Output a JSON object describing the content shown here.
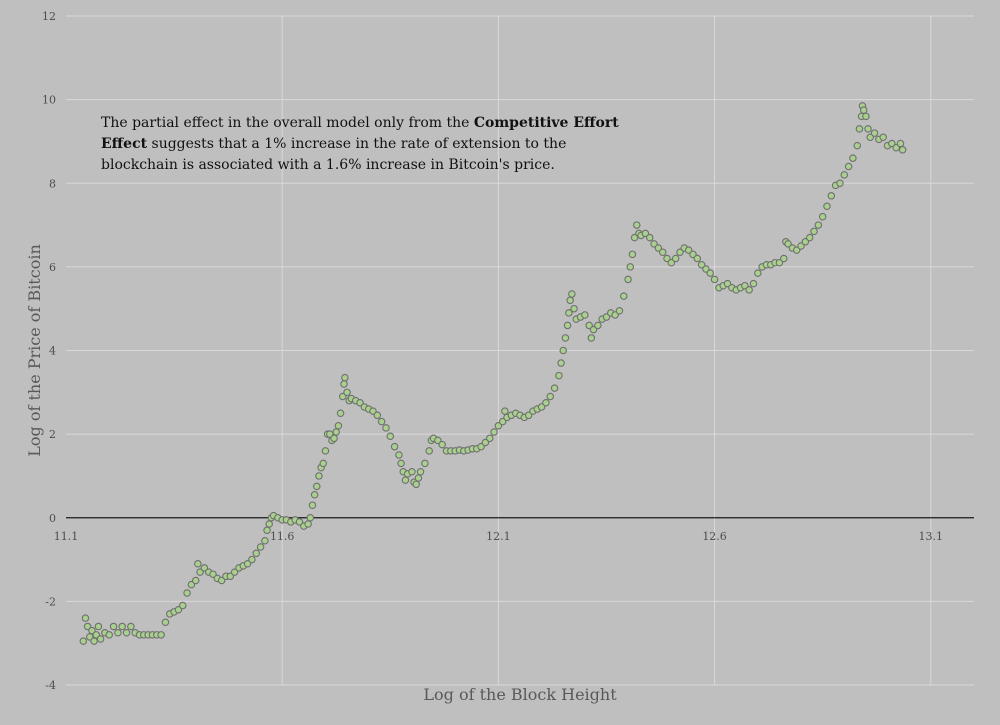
{
  "chart_data": {
    "type": "scatter",
    "title": "",
    "xlabel": "Log of the Block Height",
    "ylabel": "Log of  the  Price of  Bitcoin",
    "xlim": [
      11.1,
      13.2
    ],
    "ylim": [
      -4,
      12
    ],
    "x_ticks": [
      "11.1",
      "11.6",
      "12.1",
      "12.6",
      "13.1"
    ],
    "y_ticks": [
      "-4",
      "-2",
      "0",
      "2",
      "4",
      "6",
      "8",
      "10",
      "12"
    ],
    "grid": true,
    "legend": "none",
    "annotation": {
      "before": "The partial effect in the overall model only from the ",
      "bold": "Competitive Effort Effect",
      "after": " suggests that a 1% increase in the rate of extension to the blockchain is associated with a 1.6% increase in Bitcoin's price."
    },
    "colors": {
      "background": "#bfbfbf",
      "grid": "#d9d9d9",
      "marker_fill": "#a9d08e",
      "marker_stroke": "#6f6f6f",
      "zero_line": "#1a1a1a"
    },
    "series": [
      {
        "points": [
          [
            11.14,
            -2.95
          ],
          [
            11.145,
            -2.4
          ],
          [
            11.15,
            -2.6
          ],
          [
            11.155,
            -2.85
          ],
          [
            11.16,
            -2.7
          ],
          [
            11.165,
            -2.95
          ],
          [
            11.17,
            -2.8
          ],
          [
            11.175,
            -2.6
          ],
          [
            11.18,
            -2.9
          ],
          [
            11.19,
            -2.75
          ],
          [
            11.2,
            -2.8
          ],
          [
            11.21,
            -2.6
          ],
          [
            11.22,
            -2.75
          ],
          [
            11.23,
            -2.6
          ],
          [
            11.24,
            -2.75
          ],
          [
            11.25,
            -2.6
          ],
          [
            11.26,
            -2.75
          ],
          [
            11.27,
            -2.8
          ],
          [
            11.28,
            -2.8
          ],
          [
            11.29,
            -2.8
          ],
          [
            11.3,
            -2.8
          ],
          [
            11.31,
            -2.8
          ],
          [
            11.32,
            -2.8
          ],
          [
            11.33,
            -2.5
          ],
          [
            11.34,
            -2.3
          ],
          [
            11.35,
            -2.25
          ],
          [
            11.36,
            -2.2
          ],
          [
            11.37,
            -2.1
          ],
          [
            11.38,
            -1.8
          ],
          [
            11.39,
            -1.6
          ],
          [
            11.4,
            -1.5
          ],
          [
            11.405,
            -1.1
          ],
          [
            11.41,
            -1.3
          ],
          [
            11.42,
            -1.2
          ],
          [
            11.43,
            -1.3
          ],
          [
            11.44,
            -1.35
          ],
          [
            11.45,
            -1.45
          ],
          [
            11.46,
            -1.5
          ],
          [
            11.47,
            -1.4
          ],
          [
            11.48,
            -1.4
          ],
          [
            11.49,
            -1.3
          ],
          [
            11.5,
            -1.2
          ],
          [
            11.51,
            -1.15
          ],
          [
            11.52,
            -1.1
          ],
          [
            11.53,
            -1.0
          ],
          [
            11.54,
            -0.85
          ],
          [
            11.55,
            -0.7
          ],
          [
            11.56,
            -0.55
          ],
          [
            11.565,
            -0.3
          ],
          [
            11.57,
            -0.15
          ],
          [
            11.575,
            0.0
          ],
          [
            11.58,
            0.05
          ],
          [
            11.59,
            0.0
          ],
          [
            11.6,
            -0.05
          ],
          [
            11.61,
            -0.05
          ],
          [
            11.62,
            -0.1
          ],
          [
            11.63,
            -0.05
          ],
          [
            11.64,
            -0.1
          ],
          [
            11.65,
            -0.2
          ],
          [
            11.66,
            -0.15
          ],
          [
            11.665,
            0.0
          ],
          [
            11.67,
            0.3
          ],
          [
            11.675,
            0.55
          ],
          [
            11.68,
            0.75
          ],
          [
            11.685,
            1.0
          ],
          [
            11.69,
            1.2
          ],
          [
            11.695,
            1.3
          ],
          [
            11.7,
            1.6
          ],
          [
            11.705,
            2.0
          ],
          [
            11.71,
            2.0
          ],
          [
            11.715,
            1.85
          ],
          [
            11.72,
            1.9
          ],
          [
            11.725,
            2.05
          ],
          [
            11.73,
            2.2
          ],
          [
            11.735,
            2.5
          ],
          [
            11.74,
            2.9
          ],
          [
            11.743,
            3.2
          ],
          [
            11.745,
            3.35
          ],
          [
            11.75,
            3.0
          ],
          [
            11.755,
            2.8
          ],
          [
            11.76,
            2.85
          ],
          [
            11.77,
            2.8
          ],
          [
            11.78,
            2.75
          ],
          [
            11.79,
            2.65
          ],
          [
            11.8,
            2.6
          ],
          [
            11.81,
            2.55
          ],
          [
            11.82,
            2.45
          ],
          [
            11.83,
            2.3
          ],
          [
            11.84,
            2.15
          ],
          [
            11.85,
            1.95
          ],
          [
            11.86,
            1.7
          ],
          [
            11.87,
            1.5
          ],
          [
            11.875,
            1.3
          ],
          [
            11.88,
            1.1
          ],
          [
            11.885,
            0.9
          ],
          [
            11.89,
            1.05
          ],
          [
            11.9,
            1.1
          ],
          [
            11.905,
            0.85
          ],
          [
            11.91,
            0.8
          ],
          [
            11.915,
            0.95
          ],
          [
            11.92,
            1.1
          ],
          [
            11.93,
            1.3
          ],
          [
            11.94,
            1.6
          ],
          [
            11.945,
            1.85
          ],
          [
            11.95,
            1.9
          ],
          [
            11.96,
            1.85
          ],
          [
            11.97,
            1.75
          ],
          [
            11.98,
            1.6
          ],
          [
            11.99,
            1.6
          ],
          [
            12.0,
            1.6
          ],
          [
            12.01,
            1.62
          ],
          [
            12.02,
            1.6
          ],
          [
            12.03,
            1.62
          ],
          [
            12.04,
            1.65
          ],
          [
            12.05,
            1.65
          ],
          [
            12.06,
            1.7
          ],
          [
            12.07,
            1.8
          ],
          [
            12.08,
            1.9
          ],
          [
            12.09,
            2.05
          ],
          [
            12.1,
            2.2
          ],
          [
            12.11,
            2.3
          ],
          [
            12.115,
            2.55
          ],
          [
            12.12,
            2.4
          ],
          [
            12.13,
            2.45
          ],
          [
            12.14,
            2.5
          ],
          [
            12.15,
            2.45
          ],
          [
            12.16,
            2.4
          ],
          [
            12.17,
            2.45
          ],
          [
            12.18,
            2.55
          ],
          [
            12.19,
            2.6
          ],
          [
            12.2,
            2.65
          ],
          [
            12.21,
            2.75
          ],
          [
            12.22,
            2.9
          ],
          [
            12.23,
            3.1
          ],
          [
            12.24,
            3.4
          ],
          [
            12.245,
            3.7
          ],
          [
            12.25,
            4.0
          ],
          [
            12.255,
            4.3
          ],
          [
            12.26,
            4.6
          ],
          [
            12.263,
            4.9
          ],
          [
            12.266,
            5.2
          ],
          [
            12.27,
            5.35
          ],
          [
            12.275,
            5.0
          ],
          [
            12.28,
            4.75
          ],
          [
            12.29,
            4.8
          ],
          [
            12.3,
            4.85
          ],
          [
            12.31,
            4.6
          ],
          [
            12.315,
            4.3
          ],
          [
            12.32,
            4.5
          ],
          [
            12.33,
            4.6
          ],
          [
            12.34,
            4.75
          ],
          [
            12.35,
            4.8
          ],
          [
            12.36,
            4.9
          ],
          [
            12.37,
            4.85
          ],
          [
            12.38,
            4.95
          ],
          [
            12.39,
            5.3
          ],
          [
            12.4,
            5.7
          ],
          [
            12.405,
            6.0
          ],
          [
            12.41,
            6.3
          ],
          [
            12.415,
            6.7
          ],
          [
            12.42,
            7.0
          ],
          [
            12.425,
            6.8
          ],
          [
            12.43,
            6.75
          ],
          [
            12.44,
            6.8
          ],
          [
            12.45,
            6.7
          ],
          [
            12.46,
            6.55
          ],
          [
            12.47,
            6.45
          ],
          [
            12.48,
            6.35
          ],
          [
            12.49,
            6.2
          ],
          [
            12.5,
            6.1
          ],
          [
            12.51,
            6.2
          ],
          [
            12.52,
            6.35
          ],
          [
            12.53,
            6.45
          ],
          [
            12.54,
            6.4
          ],
          [
            12.55,
            6.3
          ],
          [
            12.56,
            6.2
          ],
          [
            12.57,
            6.05
          ],
          [
            12.58,
            5.95
          ],
          [
            12.59,
            5.85
          ],
          [
            12.6,
            5.7
          ],
          [
            12.61,
            5.5
          ],
          [
            12.62,
            5.55
          ],
          [
            12.63,
            5.6
          ],
          [
            12.64,
            5.5
          ],
          [
            12.65,
            5.45
          ],
          [
            12.66,
            5.5
          ],
          [
            12.67,
            5.55
          ],
          [
            12.68,
            5.45
          ],
          [
            12.69,
            5.6
          ],
          [
            12.7,
            5.85
          ],
          [
            12.71,
            6.0
          ],
          [
            12.72,
            6.05
          ],
          [
            12.73,
            6.05
          ],
          [
            12.74,
            6.1
          ],
          [
            12.75,
            6.1
          ],
          [
            12.76,
            6.2
          ],
          [
            12.765,
            6.6
          ],
          [
            12.77,
            6.55
          ],
          [
            12.78,
            6.45
          ],
          [
            12.79,
            6.4
          ],
          [
            12.8,
            6.5
          ],
          [
            12.81,
            6.6
          ],
          [
            12.82,
            6.7
          ],
          [
            12.83,
            6.85
          ],
          [
            12.84,
            7.0
          ],
          [
            12.85,
            7.2
          ],
          [
            12.86,
            7.45
          ],
          [
            12.87,
            7.7
          ],
          [
            12.88,
            7.95
          ],
          [
            12.89,
            8.0
          ],
          [
            12.9,
            8.2
          ],
          [
            12.91,
            8.4
          ],
          [
            12.92,
            8.6
          ],
          [
            12.93,
            8.9
          ],
          [
            12.935,
            9.3
          ],
          [
            12.94,
            9.6
          ],
          [
            12.942,
            9.85
          ],
          [
            12.945,
            9.75
          ],
          [
            12.95,
            9.6
          ],
          [
            12.955,
            9.3
          ],
          [
            12.96,
            9.1
          ],
          [
            12.97,
            9.2
          ],
          [
            12.98,
            9.05
          ],
          [
            12.99,
            9.1
          ],
          [
            13.0,
            8.9
          ],
          [
            13.01,
            8.95
          ],
          [
            13.02,
            8.85
          ],
          [
            13.03,
            8.95
          ],
          [
            13.035,
            8.8
          ]
        ]
      }
    ]
  }
}
